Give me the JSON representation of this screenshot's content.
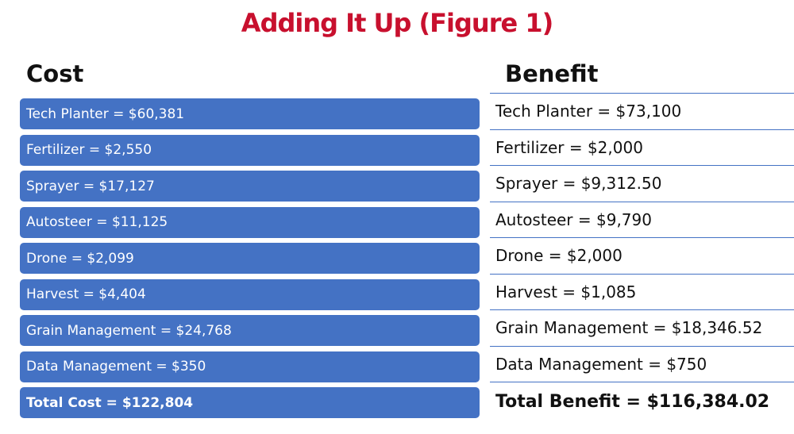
{
  "title": "Adding It Up (Figure 1)",
  "cost": {
    "heading": "Cost",
    "items": [
      "Tech Planter  = $60,381",
      "Fertilizer = $2,550",
      "Sprayer = $17,127",
      "Autosteer = $11,125",
      "Drone = $2,099",
      "Harvest = $4,404",
      "Grain Management = $24,768",
      "Data Management = $350"
    ],
    "total": "Total Cost = $122,804"
  },
  "benefit": {
    "heading": "Benefit",
    "items": [
      "Tech Planter  = $73,100",
      "Fertilizer = $2,000",
      "Sprayer = $9,312.50",
      "Autosteer = $9,790",
      "Drone = $2,000",
      "Harvest = $1,085",
      "Grain Management = $18,346.52",
      "Data Management = $750"
    ],
    "total": "Total Benefit = $116,384.02"
  },
  "colors": {
    "title": "#c8102e",
    "bar": "#4472c4",
    "divider": "#4472c4",
    "text": "#111111"
  }
}
